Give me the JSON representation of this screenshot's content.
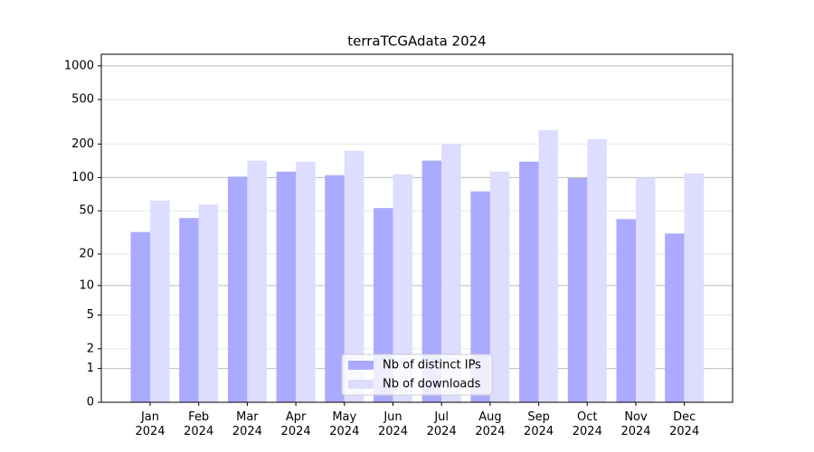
{
  "chart_data": {
    "type": "bar",
    "title": "terraTCGAdata 2024",
    "categories": [
      "Jan 2024",
      "Feb 2024",
      "Mar 2024",
      "Apr 2024",
      "May 2024",
      "Jun 2024",
      "Jul 2024",
      "Aug 2024",
      "Sep 2024",
      "Oct 2024",
      "Nov 2024",
      "Dec 2024"
    ],
    "series": [
      {
        "name": "Nb of distinct IPs",
        "color": "#aaaaff",
        "values": [
          32,
          43,
          102,
          113,
          105,
          53,
          142,
          75,
          139,
          99,
          42,
          31
        ]
      },
      {
        "name": "Nb of downloads",
        "color": "#ddddff",
        "values": [
          62,
          57,
          142,
          139,
          174,
          107,
          201,
          113,
          266,
          221,
          100,
          109
        ]
      }
    ],
    "yscale": "log1p",
    "ylim": [
      0,
      1270
    ],
    "yticks": [
      0,
      1,
      2,
      5,
      10,
      20,
      50,
      100,
      200,
      500,
      1000
    ],
    "grid": true,
    "legend": "lower center"
  }
}
